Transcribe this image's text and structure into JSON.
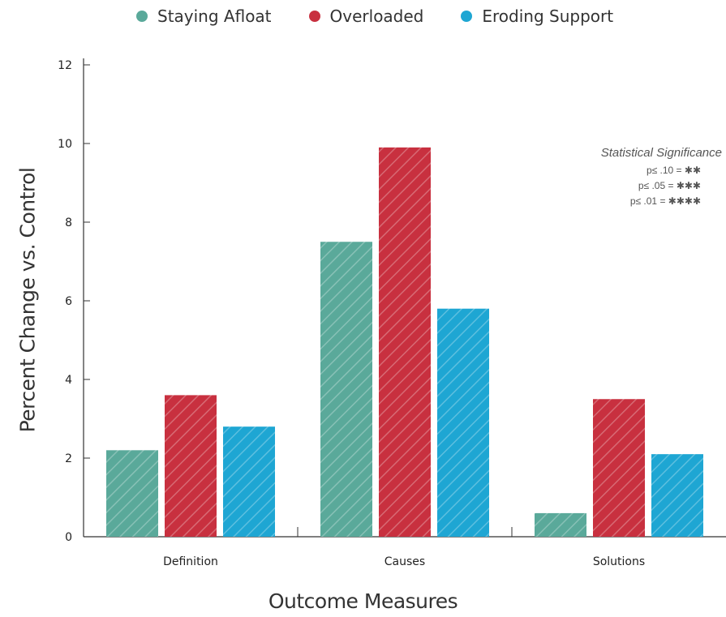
{
  "chart_data": {
    "type": "bar",
    "categories": [
      "Definition",
      "Causes",
      "Solutions"
    ],
    "series": [
      {
        "name": "Staying Afloat",
        "values": [
          2.2,
          7.5,
          0.6
        ],
        "color": "#5aa99a"
      },
      {
        "name": "Overloaded",
        "values": [
          3.6,
          9.9,
          3.5
        ],
        "color": "#c8303f"
      },
      {
        "name": "Eroding Support",
        "values": [
          2.8,
          5.8,
          2.1
        ],
        "color": "#1ea6d3"
      }
    ],
    "xlabel": "Outcome Measures",
    "ylabel": "Percent Change vs. Control",
    "ylim": [
      0,
      12
    ],
    "yticks": [
      0,
      2,
      4,
      6,
      8,
      10,
      12
    ],
    "legend_position": "top",
    "grid": false,
    "bar_pattern": "diagonal-hatch"
  },
  "significance": {
    "title": "Statistical Significance",
    "rows": [
      "p≤ .10 = ✱✱",
      "p≤ .05 = ✱✱✱",
      "p≤ .01 = ✱✱✱✱"
    ]
  }
}
